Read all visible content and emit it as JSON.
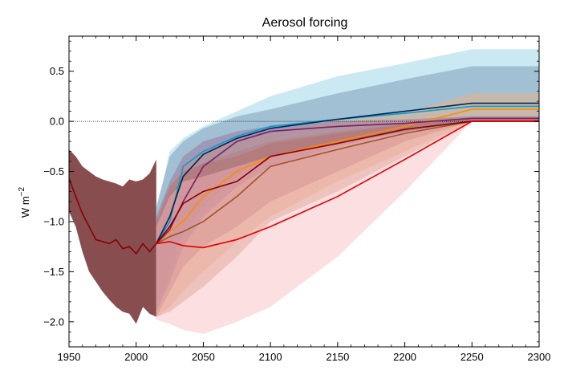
{
  "chart_data": {
    "type": "area",
    "title": "Aerosol forcing",
    "xlabel": "",
    "ylabel": "W m",
    "ylabel_exponent": "−2",
    "xlim": [
      1950,
      2300
    ],
    "ylim": [
      -2.25,
      0.85
    ],
    "xticks": [
      1950,
      2000,
      2050,
      2100,
      2150,
      2200,
      2250,
      2300
    ],
    "xtick_labels": [
      "1950",
      "2000",
      "2050",
      "2100",
      "2150",
      "2200",
      "2250",
      "2300"
    ],
    "yticks": [
      0.5,
      0.0,
      -0.5,
      -1.0,
      -1.5,
      -2.0
    ],
    "ytick_labels": [
      "0.5",
      "0.0",
      "−0.5",
      "−1.0",
      "−1.5",
      "−2.0"
    ],
    "reference_line": {
      "y": 0.0,
      "style": "dotted",
      "color": "#000000"
    },
    "grid": false,
    "legend": "none",
    "historical": {
      "color": "#8b0000",
      "band_color": "#7a3a3c",
      "x": [
        1950,
        1955,
        1960,
        1965,
        1970,
        1975,
        1980,
        1985,
        1990,
        1995,
        2000,
        2005,
        2010,
        2015
      ],
      "median": [
        -0.57,
        -0.75,
        -0.92,
        -1.05,
        -1.18,
        -1.2,
        -1.22,
        -1.18,
        -1.27,
        -1.25,
        -1.32,
        -1.22,
        -1.3,
        -1.22
      ],
      "upper": [
        -0.28,
        -0.35,
        -0.45,
        -0.5,
        -0.55,
        -0.58,
        -0.6,
        -0.62,
        -0.65,
        -0.58,
        -0.6,
        -0.58,
        -0.52,
        -0.38
      ],
      "lower": [
        -0.9,
        -1.05,
        -1.3,
        -1.5,
        -1.6,
        -1.7,
        -1.78,
        -1.85,
        -1.9,
        -1.92,
        -2.02,
        -1.85,
        -1.92,
        -1.95
      ]
    },
    "series": [
      {
        "color": "#0c9ad0",
        "band_color": "#8ccfe4",
        "x": [
          2015,
          2025,
          2035,
          2050,
          2075,
          2100,
          2150,
          2200,
          2250,
          2300
        ],
        "median": [
          -1.22,
          -1.0,
          -0.45,
          -0.3,
          -0.15,
          -0.05,
          0.02,
          0.08,
          0.15,
          0.15
        ],
        "upper": [
          -0.9,
          -0.3,
          -0.17,
          -0.05,
          0.1,
          0.25,
          0.45,
          0.58,
          0.72,
          0.72
        ],
        "lower": [
          -1.9,
          -1.6,
          -1.15,
          -0.85,
          -0.55,
          -0.35,
          -0.22,
          -0.12,
          0.0,
          0.0
        ]
      },
      {
        "color": "#00264f",
        "band_color": "#6f8fb0",
        "x": [
          2015,
          2025,
          2035,
          2050,
          2075,
          2100,
          2150,
          2200,
          2250,
          2300
        ],
        "median": [
          -1.22,
          -0.95,
          -0.55,
          -0.33,
          -0.17,
          -0.07,
          0.02,
          0.1,
          0.18,
          0.18
        ],
        "upper": [
          -0.85,
          -0.35,
          -0.2,
          -0.07,
          0.05,
          0.12,
          0.28,
          0.42,
          0.55,
          0.55
        ],
        "lower": [
          -1.85,
          -1.5,
          -1.1,
          -0.85,
          -0.55,
          -0.35,
          -0.22,
          -0.1,
          0.0,
          0.0
        ]
      },
      {
        "color": "#ff8c00",
        "band_color": "#f4b27a",
        "x": [
          2015,
          2025,
          2035,
          2050,
          2075,
          2100,
          2150,
          2200,
          2250,
          2300
        ],
        "median": [
          -1.22,
          -1.1,
          -1.0,
          -0.75,
          -0.5,
          -0.35,
          -0.2,
          -0.05,
          0.12,
          0.12
        ],
        "upper": [
          -1.0,
          -0.65,
          -0.45,
          -0.3,
          -0.18,
          -0.1,
          0.0,
          0.08,
          0.28,
          0.28
        ],
        "lower": [
          -1.95,
          -1.85,
          -1.7,
          -1.5,
          -1.2,
          -0.95,
          -0.6,
          -0.3,
          0.0,
          0.0
        ]
      },
      {
        "color": "#a0522d",
        "band_color": "#c98e6e",
        "x": [
          2015,
          2025,
          2035,
          2050,
          2075,
          2100,
          2150,
          2200,
          2250,
          2300
        ],
        "median": [
          -1.22,
          -1.15,
          -1.1,
          -1.0,
          -0.75,
          -0.45,
          -0.28,
          -0.12,
          0.0,
          0.0
        ],
        "upper": [
          -1.05,
          -0.75,
          -0.55,
          -0.42,
          -0.3,
          -0.2,
          -0.1,
          -0.02,
          0.05,
          0.05
        ],
        "lower": [
          -1.95,
          -1.9,
          -1.8,
          -1.65,
          -1.35,
          -1.0,
          -0.7,
          -0.35,
          0.0,
          0.0
        ]
      },
      {
        "color": "#7a1e6b",
        "band_color": "#9a6a92",
        "x": [
          2015,
          2025,
          2035,
          2050,
          2075,
          2100,
          2150,
          2200,
          2250,
          2300
        ],
        "median": [
          -1.22,
          -1.08,
          -0.8,
          -0.45,
          -0.2,
          -0.1,
          -0.05,
          -0.02,
          0.03,
          0.03
        ],
        "upper": [
          -0.95,
          -0.6,
          -0.35,
          -0.2,
          -0.1,
          -0.05,
          0.0,
          0.02,
          0.05,
          0.05
        ],
        "lower": [
          -1.9,
          -1.6,
          -1.25,
          -0.95,
          -0.65,
          -0.45,
          -0.25,
          -0.1,
          0.0,
          0.0
        ]
      },
      {
        "color": "#8b0000",
        "band_color": "#b46a6a",
        "x": [
          2015,
          2025,
          2035,
          2050,
          2075,
          2100,
          2150,
          2200,
          2250,
          2300
        ],
        "median": [
          -1.22,
          -1.05,
          -0.82,
          -0.7,
          -0.6,
          -0.35,
          -0.22,
          -0.08,
          0.0,
          0.0
        ],
        "upper": [
          -1.0,
          -0.65,
          -0.5,
          -0.42,
          -0.35,
          -0.22,
          -0.12,
          -0.03,
          0.02,
          0.02
        ],
        "lower": [
          -1.95,
          -1.7,
          -1.45,
          -1.25,
          -1.05,
          -0.8,
          -0.5,
          -0.2,
          0.0,
          0.0
        ]
      },
      {
        "color": "#e00000",
        "band_color": "#f7b9bd",
        "x": [
          2015,
          2025,
          2035,
          2050,
          2075,
          2100,
          2150,
          2200,
          2250,
          2300
        ],
        "median": [
          -1.22,
          -1.2,
          -1.24,
          -1.26,
          -1.18,
          -1.05,
          -0.75,
          -0.38,
          0.0,
          0.0
        ],
        "upper": [
          -1.05,
          -0.75,
          -0.6,
          -0.55,
          -0.45,
          -0.35,
          -0.22,
          -0.1,
          0.0,
          0.0
        ],
        "lower": [
          -1.98,
          -2.02,
          -2.08,
          -2.12,
          -2.0,
          -1.85,
          -1.35,
          -0.7,
          0.0,
          0.0
        ]
      }
    ]
  }
}
